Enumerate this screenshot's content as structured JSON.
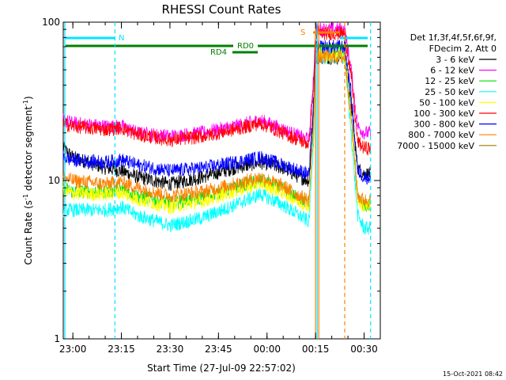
{
  "chart_data": {
    "type": "line",
    "title": "RHESSI Count Rates",
    "xlabel": "Start Time (27-Jul-09 22:57:02)",
    "ylabel_main": "Count Rate (s",
    "ylabel_sup1": "-1",
    "ylabel_mid": " detector segment",
    "ylabel_sup2": "-1",
    "ylabel_end": ")",
    "y_scale": "log",
    "ylim": [
      1,
      100
    ],
    "xlim": [
      "22:57:02",
      "00:35:00"
    ],
    "x_ticks": [
      "23:00",
      "23:15",
      "23:30",
      "23:45",
      "00:00",
      "00:15",
      "00:30"
    ],
    "y_ticks": [
      "1",
      "10",
      "100"
    ],
    "info_lines": [
      "Det 1f,3f,4f,5f,6f,9f,",
      "FDecim 2, Att 0"
    ],
    "footer_date": "15-Oct-2021 08:42",
    "legend_position": "right",
    "series": [
      {
        "name": "3 - 6 keV",
        "color": "#000000",
        "x": [
          "22:57",
          "23:00",
          "23:10",
          "23:15",
          "23:20",
          "23:30",
          "23:40",
          "23:50",
          "23:58",
          "00:05",
          "00:10",
          "00:13",
          "00:14:30",
          "00:15",
          "00:16",
          "00:24",
          "00:26",
          "00:28",
          "00:30",
          "00:32"
        ],
        "y": [
          16,
          14,
          12,
          11.5,
          10.5,
          9.5,
          10.5,
          12,
          13,
          12,
          10.5,
          10,
          30,
          60,
          60,
          60,
          30,
          12,
          11,
          11
        ]
      },
      {
        "name": "6 - 12 keV",
        "color": "#ff00ff",
        "x": [
          "22:57",
          "23:00",
          "23:10",
          "23:15",
          "23:20",
          "23:30",
          "23:40",
          "23:50",
          "23:58",
          "00:05",
          "00:10",
          "00:13",
          "00:14:30",
          "00:15",
          "00:16",
          "00:24",
          "00:26",
          "00:28",
          "00:30",
          "00:32"
        ],
        "y": [
          24,
          23,
          22,
          22,
          20,
          19,
          20,
          22,
          24,
          21,
          19,
          18,
          50,
          90,
          90,
          90,
          50,
          22,
          20,
          20
        ]
      },
      {
        "name": "12 - 25 keV",
        "color": "#00e000",
        "x": [
          "22:57",
          "23:00",
          "23:10",
          "23:15",
          "23:20",
          "23:30",
          "23:40",
          "23:50",
          "23:58",
          "00:05",
          "00:10",
          "00:13",
          "00:14:30",
          "00:15",
          "00:16",
          "00:24",
          "00:26",
          "00:28",
          "00:30",
          "00:32"
        ],
        "y": [
          9,
          8.5,
          8.5,
          8.8,
          8,
          7.2,
          7.8,
          9,
          10,
          8.8,
          7.6,
          7.2,
          25,
          65,
          65,
          65,
          25,
          8,
          7,
          7
        ]
      },
      {
        "name": "25 - 50 keV",
        "color": "#00ffff",
        "x": [
          "22:57",
          "23:00",
          "23:10",
          "23:15",
          "23:20",
          "23:30",
          "23:40",
          "23:50",
          "23:58",
          "00:05",
          "00:10",
          "00:13",
          "00:14:30",
          "00:15",
          "00:16",
          "00:24",
          "00:26",
          "00:28",
          "00:30",
          "00:32"
        ],
        "y": [
          6.5,
          6.5,
          6.5,
          6.8,
          6,
          5.2,
          5.8,
          7,
          8.2,
          7,
          6,
          5.5,
          20,
          60,
          60,
          60,
          20,
          6,
          5,
          5
        ]
      },
      {
        "name": "50 - 100 keV",
        "color": "#ffff00",
        "x": [
          "22:57",
          "23:00",
          "23:10",
          "23:15",
          "23:20",
          "23:30",
          "23:40",
          "23:50",
          "23:58",
          "00:05",
          "00:10",
          "00:13",
          "00:14:30",
          "00:15",
          "00:16",
          "00:24",
          "00:26",
          "00:28",
          "00:30",
          "00:32"
        ],
        "y": [
          8.5,
          8.3,
          8.2,
          8.4,
          7.6,
          6.8,
          7.4,
          8.6,
          9.6,
          8.4,
          7.3,
          7,
          24,
          62,
          62,
          62,
          24,
          7.6,
          6.8,
          6.8
        ]
      },
      {
        "name": "100 - 300 keV",
        "color": "#ff0000",
        "x": [
          "22:57",
          "23:00",
          "23:10",
          "23:15",
          "23:20",
          "23:30",
          "23:40",
          "23:50",
          "23:58",
          "00:05",
          "00:10",
          "00:13",
          "00:14:30",
          "00:15",
          "00:16",
          "00:24",
          "00:26",
          "00:28",
          "00:30",
          "00:32"
        ],
        "y": [
          23,
          22,
          21,
          21.5,
          19.5,
          18,
          19,
          21,
          23,
          20,
          18,
          17,
          45,
          85,
          85,
          85,
          45,
          17.5,
          16,
          16
        ]
      },
      {
        "name": "300 - 800 keV",
        "color": "#0000ff",
        "x": [
          "22:57",
          "23:00",
          "23:10",
          "23:15",
          "23:20",
          "23:30",
          "23:40",
          "23:50",
          "23:58",
          "00:05",
          "00:10",
          "00:13",
          "00:14:30",
          "00:15",
          "00:16",
          "00:24",
          "00:26",
          "00:28",
          "00:30",
          "00:32"
        ],
        "y": [
          14,
          13.5,
          13,
          13.5,
          12.5,
          11.5,
          12,
          13,
          14,
          12.5,
          11.5,
          11,
          35,
          70,
          70,
          70,
          35,
          11.5,
          10.5,
          10.5
        ]
      },
      {
        "name": "800 - 7000 keV",
        "color": "#ff8000",
        "x": [
          "22:57",
          "23:00",
          "23:10",
          "23:15",
          "23:20",
          "23:30",
          "23:40",
          "23:50",
          "23:58",
          "00:05",
          "00:10",
          "00:13",
          "00:14:30",
          "00:15",
          "00:16",
          "00:24",
          "00:26",
          "00:28",
          "00:30",
          "00:32"
        ],
        "y": [
          10.5,
          10,
          9.5,
          9.8,
          9,
          8,
          8.5,
          9.5,
          10.5,
          9.2,
          8,
          7.5,
          25,
          60,
          60,
          60,
          25,
          8,
          7.5,
          7.5
        ]
      },
      {
        "name": "7000 - 15000 keV",
        "color": "#9a7a00",
        "x": [],
        "y": []
      }
    ],
    "markers": {
      "attenuator_state_label": "S",
      "rd0_label": "RD0",
      "rd4_label": "RD4",
      "night_label": "N",
      "vlines": [
        "23:13",
        "00:15",
        "00:15:30",
        "00:16",
        "00:24",
        "00:32"
      ]
    }
  }
}
